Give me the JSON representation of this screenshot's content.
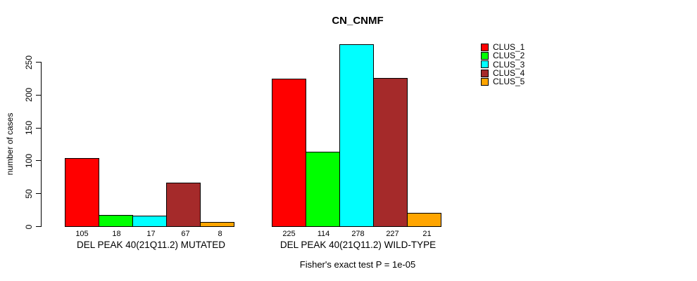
{
  "chart_data": {
    "type": "bar",
    "title": "CN_CNMF",
    "ylabel": "number of cases",
    "xlabel": "",
    "footnote": "Fisher's exact test P = 1e-05",
    "ylim": [
      0,
      250
    ],
    "yticks": [
      0,
      50,
      100,
      150,
      200,
      250
    ],
    "grid": false,
    "legend_position": "right",
    "categories": [
      "DEL PEAK 40(21Q11.2) MUTATED",
      "DEL PEAK 40(21Q11.2) WILD-TYPE"
    ],
    "series": [
      {
        "name": "CLUS_1",
        "color": "#FF0000",
        "values": [
          105,
          225
        ]
      },
      {
        "name": "CLUS_2",
        "color": "#00FF00",
        "values": [
          18,
          114
        ]
      },
      {
        "name": "CLUS_3",
        "color": "#00FFFF",
        "values": [
          17,
          278
        ]
      },
      {
        "name": "CLUS_4",
        "color": "#A52A2A",
        "values": [
          67,
          227
        ]
      },
      {
        "name": "CLUS_5",
        "color": "#FFA500",
        "values": [
          8,
          21
        ]
      }
    ],
    "bar_value_labels_shown": true,
    "colors": {
      "background": "#FFFFFF",
      "axis": "#000000",
      "text": "#000000"
    }
  }
}
